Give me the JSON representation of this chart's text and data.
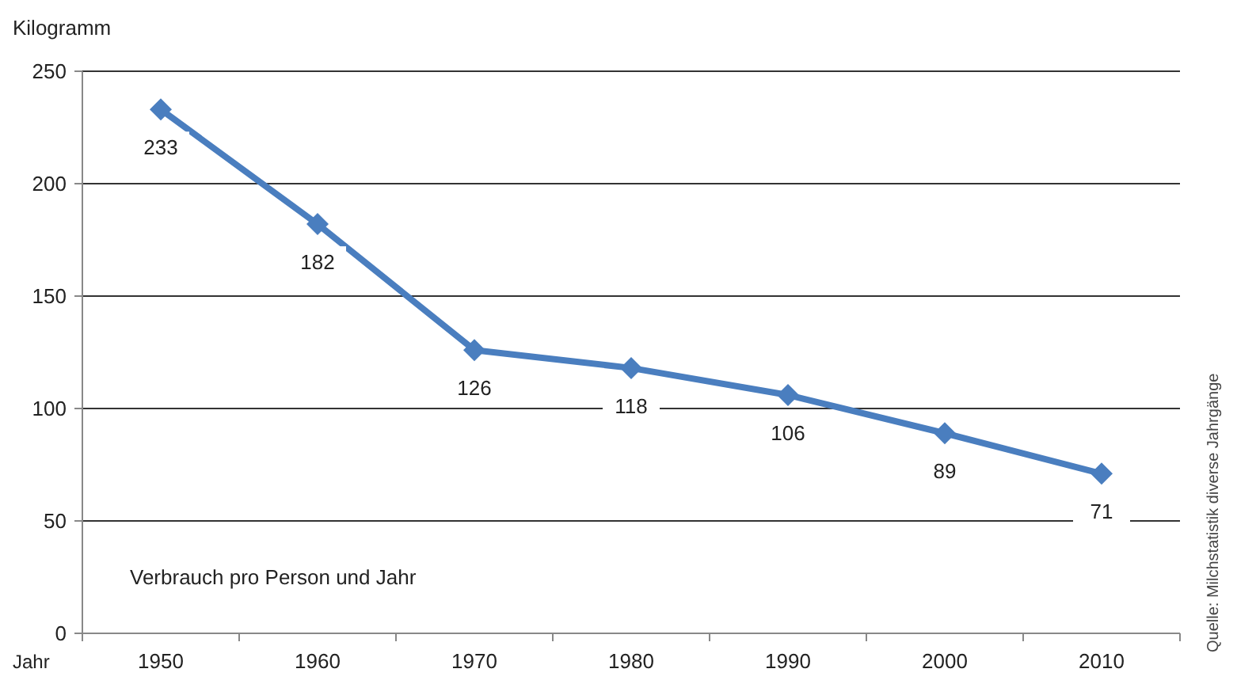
{
  "chart_data": {
    "type": "line",
    "ylabel": "Kilogramm",
    "xlabel": "Jahr",
    "categories": [
      "1950",
      "1960",
      "1970",
      "1980",
      "1990",
      "2000",
      "2010"
    ],
    "series": [
      {
        "color": "#4a7ebf",
        "values": [
          233,
          182,
          126,
          118,
          106,
          89,
          71
        ]
      }
    ],
    "ylim": [
      0,
      250
    ],
    "yticks": [
      0,
      50,
      100,
      150,
      200,
      250
    ],
    "grid": "y",
    "marker": "diamond",
    "data_labels": true,
    "annotations": [
      "Verbrauch pro Person und Jahr",
      "Quelle: Milchstatistik diverse Jahrgänge"
    ]
  }
}
